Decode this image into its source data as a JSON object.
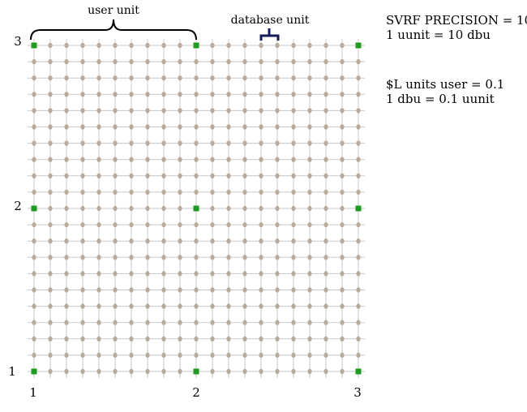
{
  "diagram": {
    "grid": {
      "x_axis_ticks": [
        "1",
        "2",
        "3"
      ],
      "y_axis_ticks": [
        "1",
        "2",
        "3"
      ],
      "subdivisions_per_user_unit": 10
    },
    "annotations": {
      "user_unit_label": "user unit",
      "database_unit_label": "database unit"
    },
    "info_precision": {
      "line1": "SVRF PRECISION = 10",
      "line2": "1 uunit = 10 dbu"
    },
    "info_units": {
      "line1": "$L units user = 0.1",
      "line2": "1 dbu = 0.1 uunit"
    },
    "colors": {
      "grid_line": "#c8c8c8",
      "dbu_point": "#b8ab9c",
      "user_unit_point": "#1e9a1e",
      "user_unit_brace": "#000000",
      "dbu_brace": "#141a5a"
    }
  }
}
